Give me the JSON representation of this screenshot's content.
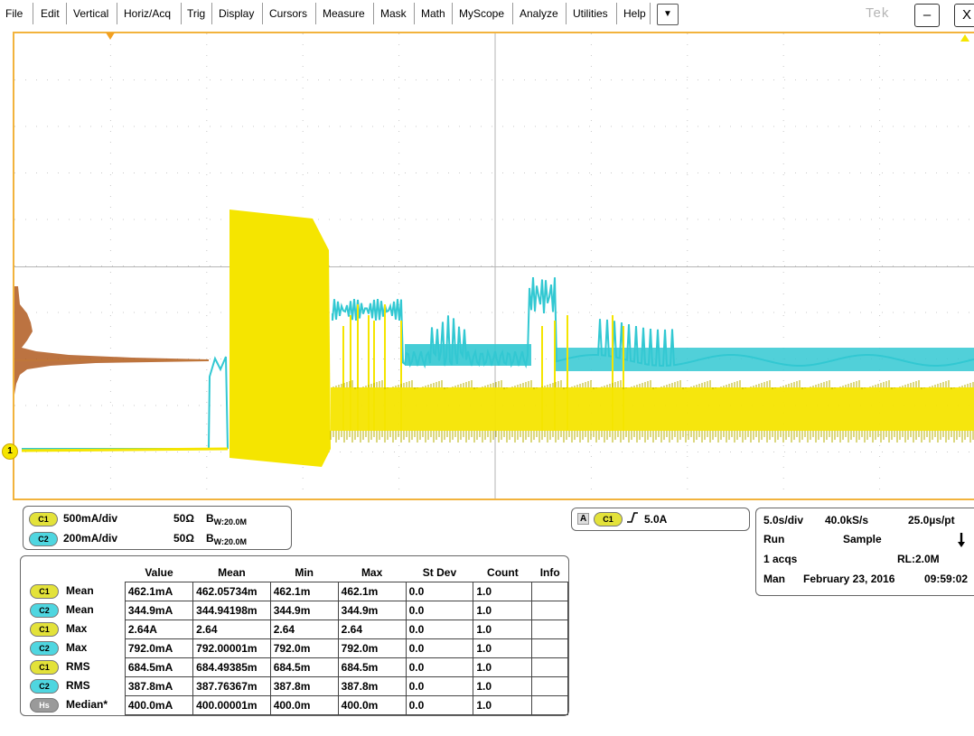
{
  "menu": {
    "items": [
      "File",
      "Edit",
      "Vertical",
      "Horiz/Acq",
      "Trig",
      "Display",
      "Cursors",
      "Measure",
      "Mask",
      "Math",
      "MyScope",
      "Analyze",
      "Utilities",
      "Help"
    ],
    "dropdown_icon": "triangle-down",
    "logo": "Tek",
    "minimize_label": "–",
    "close_label": "X"
  },
  "scope": {
    "ch1_marker_label": "1",
    "colors": {
      "ch1": "#f5e500",
      "ch2": "#32c8d2",
      "histogram": "#b05a20",
      "graticule": "#f2b33d"
    }
  },
  "channels": [
    {
      "pill": "C1",
      "scale": "500mA/div",
      "impedance": "50Ω",
      "bw": "W:20.0M",
      "bw_prefix": "B"
    },
    {
      "pill": "C2",
      "scale": "200mA/div",
      "impedance": "50Ω",
      "bw": "W:20.0M",
      "bw_prefix": "B"
    }
  ],
  "trigger": {
    "source_letter": "A",
    "pill": "C1",
    "slope_icon": "rising-edge",
    "level": "5.0A"
  },
  "acquisition": {
    "timebase": "5.0s/div",
    "sample_rate": "40.0kS/s",
    "resolution": "25.0µs/pt",
    "state": "Run",
    "mode": "Sample",
    "acqs": "1 acqs",
    "record_length": "RL:2.0M",
    "trigger_mode": "Man",
    "date": "February 23, 2016",
    "time": "09:59:02"
  },
  "measurements": {
    "headers": [
      "Value",
      "Mean",
      "Min",
      "Max",
      "St Dev",
      "Count",
      "Info"
    ],
    "rows": [
      {
        "pill": "C1",
        "name": "Mean",
        "value": "462.1mA",
        "mean": "462.05734m",
        "min": "462.1m",
        "max": "462.1m",
        "stdev": "0.0",
        "count": "1.0",
        "info": ""
      },
      {
        "pill": "C2",
        "name": "Mean",
        "value": "344.9mA",
        "mean": "344.94198m",
        "min": "344.9m",
        "max": "344.9m",
        "stdev": "0.0",
        "count": "1.0",
        "info": ""
      },
      {
        "pill": "C1",
        "name": "Max",
        "value": "2.64A",
        "mean": "2.64",
        "min": "2.64",
        "max": "2.64",
        "stdev": "0.0",
        "count": "1.0",
        "info": ""
      },
      {
        "pill": "C2",
        "name": "Max",
        "value": "792.0mA",
        "mean": "792.00001m",
        "min": "792.0m",
        "max": "792.0m",
        "stdev": "0.0",
        "count": "1.0",
        "info": ""
      },
      {
        "pill": "C1",
        "name": "RMS",
        "value": "684.5mA",
        "mean": "684.49385m",
        "min": "684.5m",
        "max": "684.5m",
        "stdev": "0.0",
        "count": "1.0",
        "info": ""
      },
      {
        "pill": "C2",
        "name": "RMS",
        "value": "387.8mA",
        "mean": "387.76367m",
        "min": "387.8m",
        "max": "387.8m",
        "stdev": "0.0",
        "count": "1.0",
        "info": ""
      },
      {
        "pill": "Hs",
        "name": "Median*",
        "value": "400.0mA",
        "mean": "400.00001m",
        "min": "400.0m",
        "max": "400.0m",
        "stdev": "0.0",
        "count": "1.0",
        "info": ""
      }
    ]
  }
}
